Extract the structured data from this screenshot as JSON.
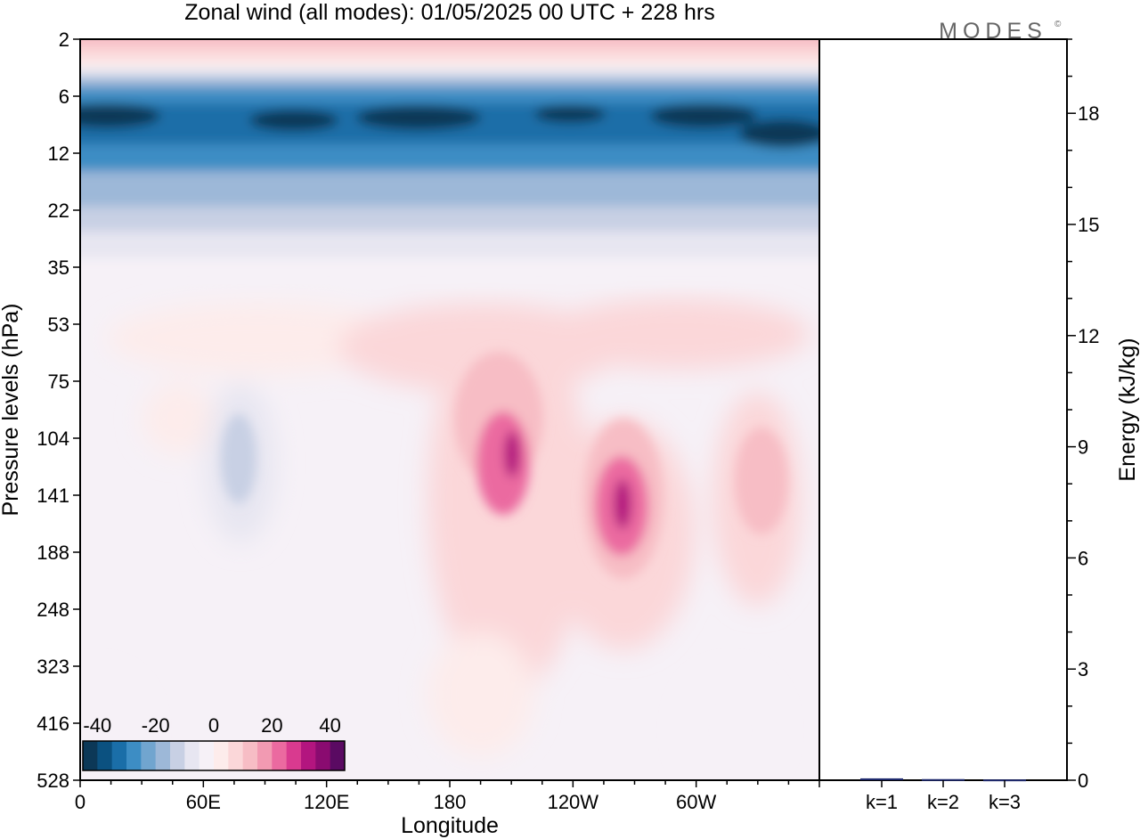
{
  "brand": {
    "name": "MODES",
    "mark": "©"
  },
  "chart_data": [
    {
      "type": "heatmap",
      "title": "Zonal wind (all modes):  01/05/2025  00 UTC  + 228 hrs",
      "xlabel": "Longitude",
      "ylabel": "Pressure levels (hPa)",
      "x_ticks": [
        "0",
        "60E",
        "120E",
        "180",
        "120W",
        "60W"
      ],
      "x_tick_degrees": [
        0,
        60,
        120,
        180,
        240,
        300
      ],
      "xlim": [
        0,
        360
      ],
      "y_ticks": [
        "2",
        "6",
        "12",
        "22",
        "35",
        "53",
        "75",
        "104",
        "141",
        "188",
        "248",
        "323",
        "416",
        "528"
      ],
      "y_scale": "index of model levels, top 2 hPa to bottom 528 hPa",
      "colorbar": {
        "tick_labels": [
          "-40",
          "-20",
          "0",
          "20",
          "40"
        ],
        "tick_values": [
          -40,
          -20,
          0,
          20,
          40
        ],
        "range": [
          -45,
          45
        ],
        "step": 5,
        "colors": [
          "#0c3857",
          "#0b5180",
          "#1a6ea8",
          "#3d8dc4",
          "#71a5cf",
          "#9db8d8",
          "#c8d0e4",
          "#e7e6f1",
          "#f6f1f7",
          "#fdeceb",
          "#fbd7d9",
          "#f7bdc5",
          "#f29ab2",
          "#eb6aa0",
          "#d93a8f",
          "#b3157f",
          "#8a0b70",
          "#5a0a62"
        ]
      },
      "features": [
        {
          "label": "easterly jet core",
          "value": -35,
          "lon_range": [
            0,
            360
          ],
          "level": "8-10 hPa"
        },
        {
          "label": "westerly maximum",
          "value": 30,
          "lon": 198,
          "level": "130 hPa"
        },
        {
          "label": "westerly maximum",
          "value": 30,
          "lon": 262,
          "level": "145 hPa"
        },
        {
          "label": "easterly minimum",
          "value": -15,
          "lon": 80,
          "level": "120 hPa"
        }
      ]
    },
    {
      "type": "bar",
      "categories": [
        "k=1",
        "k=2",
        "k=3"
      ],
      "values": [
        0.05,
        0.03,
        0.02
      ],
      "ylabel": "Energy (kJ/kg)",
      "ylim": [
        0,
        20
      ],
      "y_ticks": [
        0,
        3,
        6,
        9,
        12,
        15,
        18
      ],
      "bar_color": "#1f2a6e"
    }
  ]
}
